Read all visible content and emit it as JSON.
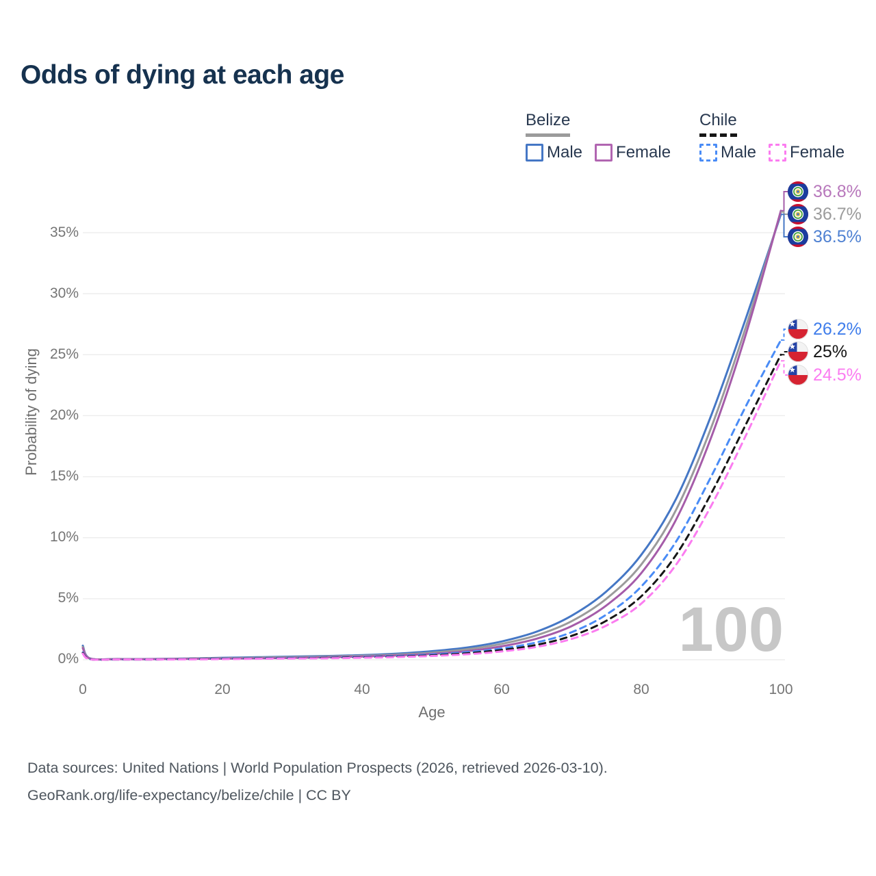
{
  "title": "Odds of dying at each age",
  "legend": {
    "groups": [
      {
        "country": "Belize",
        "line_style": "solid",
        "country_line_color": "#9b9b9b",
        "items": [
          {
            "label": "Male",
            "color": "#4577c5"
          },
          {
            "label": "Female",
            "color": "#b165b1"
          }
        ]
      },
      {
        "country": "Chile",
        "line_style": "dashed",
        "country_line_color": "#161616",
        "items": [
          {
            "label": "Male",
            "color": "#4a8cf6"
          },
          {
            "label": "Female",
            "color": "#fb7cf0"
          }
        ]
      }
    ]
  },
  "axes": {
    "x": {
      "title": "Age",
      "tick_labels": [
        "0",
        "20",
        "40",
        "60",
        "80",
        "100"
      ]
    },
    "y": {
      "title": "Probability of dying",
      "tick_labels": [
        "35%",
        "30%",
        "25%",
        "20%",
        "15%",
        "10%",
        "5%",
        "0%"
      ]
    }
  },
  "watermark_age": "100",
  "annotations": [
    {
      "text": "36.8%",
      "country": "Belize",
      "series": "Belize Female",
      "label_color": "#b878bc",
      "flag": "belize-flag-icon"
    },
    {
      "text": "36.7%",
      "country": "Belize",
      "series": "Belize",
      "label_color": "#9c9c9c",
      "flag": "belize-flag-icon"
    },
    {
      "text": "36.5%",
      "country": "Belize",
      "series": "Belize Male",
      "label_color": "#4f81d2",
      "flag": "belize-flag-icon"
    },
    {
      "text": "26.2%",
      "country": "Chile",
      "series": "Chile Male",
      "label_color": "#3f7deb",
      "flag": "chile-flag-icon"
    },
    {
      "text": "25%",
      "country": "Chile",
      "series": "Chile",
      "label_color": "#141414",
      "flag": "chile-flag-icon"
    },
    {
      "text": "24.5%",
      "country": "Chile",
      "series": "Chile Female",
      "label_color": "#fb7df1",
      "flag": "chile-flag-icon"
    }
  ],
  "footer": {
    "line1": "Data sources: United Nations | World Population Prospects (2026, retrieved 2026-03-10).",
    "line2": "GeoRank.org/life-expectancy/belize/chile | CC BY"
  },
  "chart_data": {
    "type": "line",
    "title": "Odds of dying at each age",
    "xlabel": "Age",
    "ylabel": "Probability of dying",
    "xlim": [
      0,
      100
    ],
    "ylim_pct": [
      0,
      38
    ],
    "x_ticks": [
      0,
      20,
      40,
      60,
      80,
      100
    ],
    "y_ticks_pct": [
      0,
      5,
      10,
      15,
      20,
      25,
      30,
      35
    ],
    "grid": "horizontal",
    "legend_position": "top-right",
    "x": [
      0,
      1,
      5,
      10,
      15,
      20,
      25,
      30,
      35,
      40,
      45,
      50,
      55,
      60,
      65,
      70,
      75,
      80,
      85,
      90,
      95,
      100
    ],
    "series": [
      {
        "name": "Belize Male",
        "country": "Belize",
        "color": "#4577c5",
        "dash": false,
        "values": [
          1.15,
          0.12,
          0.06,
          0.06,
          0.1,
          0.16,
          0.21,
          0.26,
          0.31,
          0.38,
          0.5,
          0.7,
          1.0,
          1.5,
          2.3,
          3.6,
          5.6,
          8.6,
          13.2,
          20.0,
          28.0,
          36.5
        ]
      },
      {
        "name": "Belize",
        "country": "Belize",
        "color": "#9b9b9b",
        "dash": false,
        "values": [
          1.05,
          0.11,
          0.05,
          0.05,
          0.09,
          0.13,
          0.17,
          0.21,
          0.26,
          0.32,
          0.42,
          0.58,
          0.85,
          1.3,
          2.0,
          3.15,
          5.0,
          7.8,
          12.3,
          19.0,
          27.3,
          36.7
        ]
      },
      {
        "name": "Belize Female",
        "country": "Belize",
        "color": "#a55ca9",
        "dash": false,
        "values": [
          0.95,
          0.1,
          0.05,
          0.05,
          0.07,
          0.09,
          0.12,
          0.15,
          0.2,
          0.26,
          0.35,
          0.48,
          0.7,
          1.1,
          1.72,
          2.75,
          4.45,
          7.1,
          11.5,
          18.2,
          26.7,
          36.8
        ]
      },
      {
        "name": "Chile Male",
        "country": "Chile",
        "color": "#4a8cf6",
        "dash": true,
        "values": [
          0.6,
          0.05,
          0.02,
          0.02,
          0.05,
          0.09,
          0.12,
          0.15,
          0.18,
          0.23,
          0.31,
          0.43,
          0.62,
          0.92,
          1.42,
          2.25,
          3.7,
          6.0,
          9.7,
          15.0,
          20.8,
          26.2
        ]
      },
      {
        "name": "Chile",
        "country": "Chile",
        "color": "#161616",
        "dash": true,
        "values": [
          0.55,
          0.05,
          0.02,
          0.02,
          0.04,
          0.07,
          0.1,
          0.12,
          0.15,
          0.19,
          0.26,
          0.36,
          0.53,
          0.8,
          1.22,
          1.95,
          3.2,
          5.2,
          8.6,
          13.6,
          19.3,
          25.0
        ]
      },
      {
        "name": "Chile Female",
        "country": "Chile",
        "color": "#fb7cf0",
        "dash": true,
        "values": [
          0.5,
          0.04,
          0.02,
          0.02,
          0.03,
          0.05,
          0.08,
          0.1,
          0.12,
          0.16,
          0.22,
          0.31,
          0.45,
          0.68,
          1.05,
          1.7,
          2.8,
          4.6,
          7.8,
          12.6,
          18.4,
          24.5
        ]
      }
    ],
    "end_labels": {
      "Belize Female": "36.8%",
      "Belize": "36.7%",
      "Belize Male": "36.5%",
      "Chile Male": "26.2%",
      "Chile": "25%",
      "Chile Female": "24.5%"
    }
  }
}
